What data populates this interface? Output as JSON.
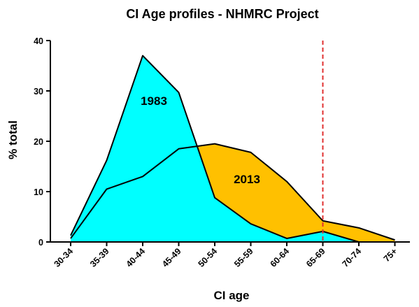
{
  "chart_data": {
    "type": "area",
    "title": "CI Age profiles - NHMRC Project",
    "xlabel": "CI age",
    "ylabel": "% total",
    "categories": [
      "30-34",
      "35-39",
      "40-44",
      "45-49",
      "50-54",
      "55-59",
      "60-64",
      "65-69",
      "70-74",
      "75+"
    ],
    "ylim": [
      0,
      40
    ],
    "yticks": [
      "0",
      "10",
      "20",
      "30",
      "40"
    ],
    "grid": false,
    "series": [
      {
        "name": "1983",
        "color": "#00ffff",
        "values": [
          1.3,
          16.2,
          37.0,
          29.7,
          8.8,
          3.6,
          0.7,
          2.1,
          0,
          0
        ]
      },
      {
        "name": "2013",
        "color": "#ffc000",
        "values": [
          0.7,
          10.5,
          13.0,
          18.5,
          19.5,
          17.8,
          12.0,
          4.2,
          2.8,
          0.4
        ]
      }
    ],
    "reference_line": {
      "category": "65-69",
      "color": "#e03030",
      "style": "dashed"
    }
  }
}
